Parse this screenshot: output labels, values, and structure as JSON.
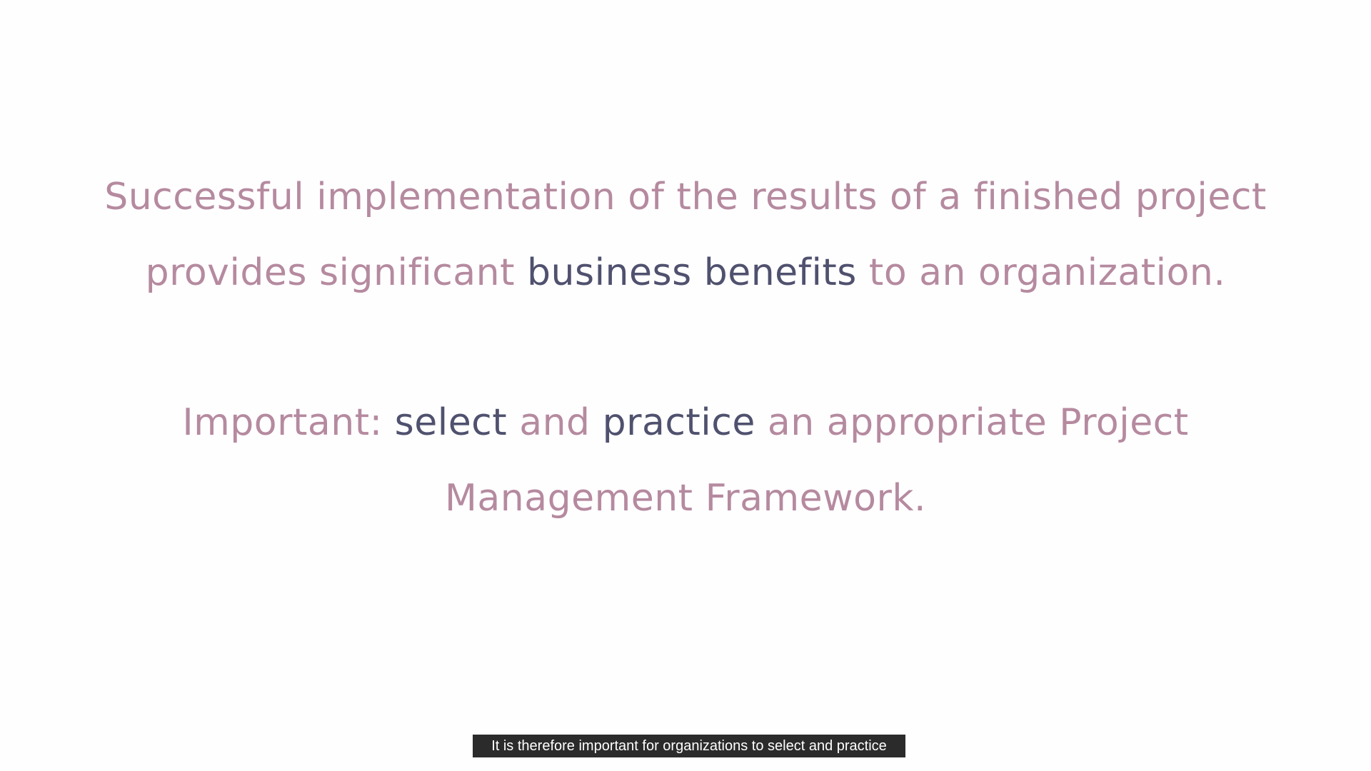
{
  "slide": {
    "line1": "Successful implementation of the results of a finished project",
    "line2": {
      "part1": "provides significant ",
      "highlight": "business benefits",
      "part2": " to an organization."
    },
    "line3": {
      "part1": "Important: ",
      "highlight1": "select",
      "part2": " and ",
      "highlight2": "practice",
      "part3": " an appropriate Project"
    },
    "line4": "Management Framework."
  },
  "caption": {
    "text": "It is therefore important for organizations to select and practice"
  },
  "colors": {
    "background": "#fffeff",
    "body_text": "#b58a9f",
    "accent_text": "#4f516e",
    "caption_bg": "#2b2b2b",
    "caption_text": "#ffffff"
  }
}
